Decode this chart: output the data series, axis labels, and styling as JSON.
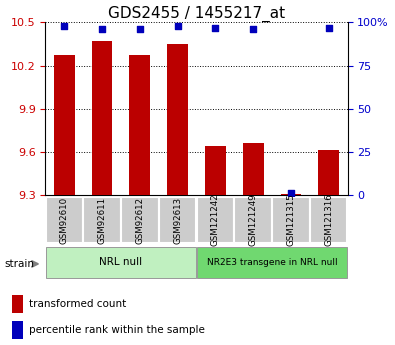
{
  "title": "GDS2455 / 1455217_at",
  "samples": [
    "GSM92610",
    "GSM92611",
    "GSM92612",
    "GSM92613",
    "GSM121242",
    "GSM121249",
    "GSM121315",
    "GSM121316"
  ],
  "transformed_counts": [
    10.27,
    10.37,
    10.27,
    10.35,
    9.64,
    9.66,
    9.305,
    9.61
  ],
  "percentile_ranks": [
    98,
    96,
    96,
    98,
    97,
    96,
    1,
    97
  ],
  "ylim_left": [
    9.3,
    10.5
  ],
  "ylim_right": [
    0,
    100
  ],
  "yticks_left": [
    9.3,
    9.6,
    9.9,
    10.2,
    10.5
  ],
  "yticks_right": [
    0,
    25,
    50,
    75,
    100
  ],
  "groups": [
    {
      "label": "NRL null",
      "start": 0,
      "end": 3,
      "color": "#c0f0c0"
    },
    {
      "label": "NR2E3 transgene in NRL null",
      "start": 4,
      "end": 7,
      "color": "#70d870"
    }
  ],
  "bar_color": "#bb0000",
  "dot_color": "#0000bb",
  "bar_width": 0.55,
  "title_fontsize": 11,
  "left_tick_color": "#cc0000",
  "right_tick_color": "#0000cc",
  "sample_box_color": "#cccccc",
  "legend_red": "transformed count",
  "legend_blue": "percentile rank within the sample",
  "strain_label": "strain"
}
